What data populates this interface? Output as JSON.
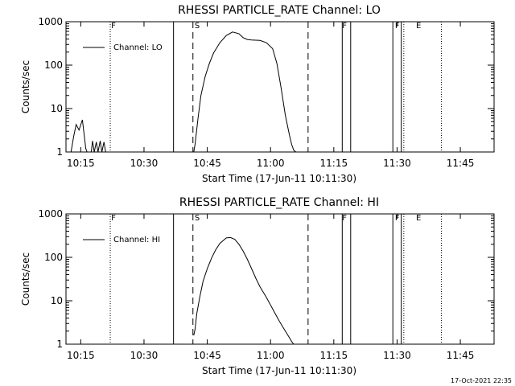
{
  "chart_data": [
    {
      "type": "line",
      "title": "RHESSI PARTICLE_RATE Channel: LO",
      "xlabel": "Start Time (17-Jun-11 10:11:30)",
      "ylabel": "Counts/sec",
      "x_ticks": [
        "10:15",
        "10:30",
        "10:45",
        "11:00",
        "11:15",
        "11:30",
        "11:45"
      ],
      "x_tick_minutes": [
        15,
        30,
        45,
        60,
        75,
        90,
        105
      ],
      "xlim_minutes": [
        11.5,
        113.0
      ],
      "y_ticks": [
        "1",
        "10",
        "100",
        "1000"
      ],
      "ylim": [
        1,
        1000
      ],
      "y_scale": "log",
      "legend": [
        "Channel: LO"
      ],
      "legend_position": "top-left",
      "flag_labels": [
        "F",
        "S",
        "F",
        "F",
        "E"
      ],
      "flag_minutes": [
        22.2,
        42.0,
        77.0,
        89.5,
        94.5
      ],
      "solid_lines_minutes": [
        37.0,
        77.0,
        79.0,
        89.0,
        91.0
      ],
      "dashed_lines_minutes": [
        41.6,
        68.9
      ],
      "dotted_lines_minutes": [
        22.0,
        91.6,
        100.5
      ],
      "series": [
        {
          "name": "Channel: LO",
          "x": [
            11.5,
            12.2,
            12.7,
            13.3,
            13.9,
            14.6,
            15.4,
            16.2,
            16.5,
            17.5,
            17.8,
            18.2,
            18.7,
            19.1,
            19.6,
            20.0,
            20.5,
            20.9,
            21.2,
            21.6,
            21.9,
            22.3,
            22.5,
            23.0,
            23.5,
            24.0,
            24.5,
            25.0,
            26.0,
            27.0,
            28.0,
            29.0,
            30.0,
            31.0,
            32.0,
            33.0,
            34.0,
            35.0,
            36.0,
            37.0,
            38.0,
            39.0,
            40.0,
            41.0,
            41.8,
            42.1,
            42.8,
            43.5,
            44.5,
            45.5,
            46.5,
            48.0,
            49.5,
            51.0,
            52.5,
            53.5,
            54.5,
            55.5,
            56.5,
            57.5,
            59.0,
            60.5,
            61.5,
            62.5,
            63.5,
            64.5,
            65.0,
            65.5,
            66.0,
            66.4,
            66.8,
            67.3,
            67.8,
            70.0,
            75.0,
            80.0,
            85.0,
            90.0,
            95.0,
            100.0,
            105.0,
            110.0,
            113.0
          ],
          "y": [
            1,
            1,
            1,
            2.2,
            4.3,
            3.2,
            5.5,
            1.2,
            1,
            1,
            1.8,
            1,
            1.7,
            1,
            1.8,
            1,
            1.7,
            1,
            1,
            1,
            1,
            1,
            1,
            1,
            1,
            1,
            1,
            1,
            1,
            1,
            1,
            1,
            1,
            1,
            1,
            1,
            1,
            1,
            1,
            1,
            1,
            1,
            1,
            1,
            1,
            1.5,
            6,
            20,
            55,
            110,
            190,
            330,
            480,
            580,
            530,
            430,
            390,
            380,
            375,
            370,
            330,
            240,
            110,
            30,
            7,
            2.4,
            1.5,
            1.1,
            1,
            1,
            1,
            1,
            1,
            1,
            1,
            1,
            1,
            1,
            1,
            1,
            1,
            1,
            1
          ]
        }
      ]
    },
    {
      "type": "line",
      "title": "RHESSI PARTICLE_RATE Channel: HI",
      "xlabel": "Start Time (17-Jun-11 10:11:30)",
      "ylabel": "Counts/sec",
      "x_ticks": [
        "10:15",
        "10:30",
        "10:45",
        "11:00",
        "11:15",
        "11:30",
        "11:45"
      ],
      "x_tick_minutes": [
        15,
        30,
        45,
        60,
        75,
        90,
        105
      ],
      "xlim_minutes": [
        11.5,
        113.0
      ],
      "y_ticks": [
        "1",
        "10",
        "100",
        "1000"
      ],
      "ylim": [
        1,
        1000
      ],
      "y_scale": "log",
      "legend": [
        "Channel: HI"
      ],
      "legend_position": "top-left",
      "flag_labels": [
        "F",
        "S",
        "F",
        "F",
        "E"
      ],
      "flag_minutes": [
        22.2,
        42.0,
        77.0,
        89.5,
        94.5
      ],
      "solid_lines_minutes": [
        37.0,
        77.0,
        79.0,
        89.0,
        91.0
      ],
      "dashed_lines_minutes": [
        41.6,
        68.9
      ],
      "dotted_lines_minutes": [
        22.0,
        91.6,
        100.5
      ],
      "series": [
        {
          "name": "Channel: HI",
          "x": [
            41.8,
            42.1,
            42.5,
            43.2,
            44.0,
            45.0,
            46.0,
            47.0,
            48.0,
            49.5,
            50.5,
            51.5,
            52.5,
            53.5,
            54.5,
            55.5,
            56.5,
            57.5,
            59.0,
            60.5,
            62.0,
            63.5,
            64.5,
            65.0,
            65.5
          ],
          "y": [
            1.6,
            2.2,
            5,
            12,
            28,
            55,
            95,
            150,
            210,
            280,
            285,
            260,
            200,
            140,
            90,
            55,
            33,
            21,
            12,
            6.5,
            3.5,
            2.0,
            1.4,
            1.15,
            1
          ]
        }
      ]
    }
  ],
  "footer": {
    "timestamp": "17-Oct-2021 22:35"
  }
}
